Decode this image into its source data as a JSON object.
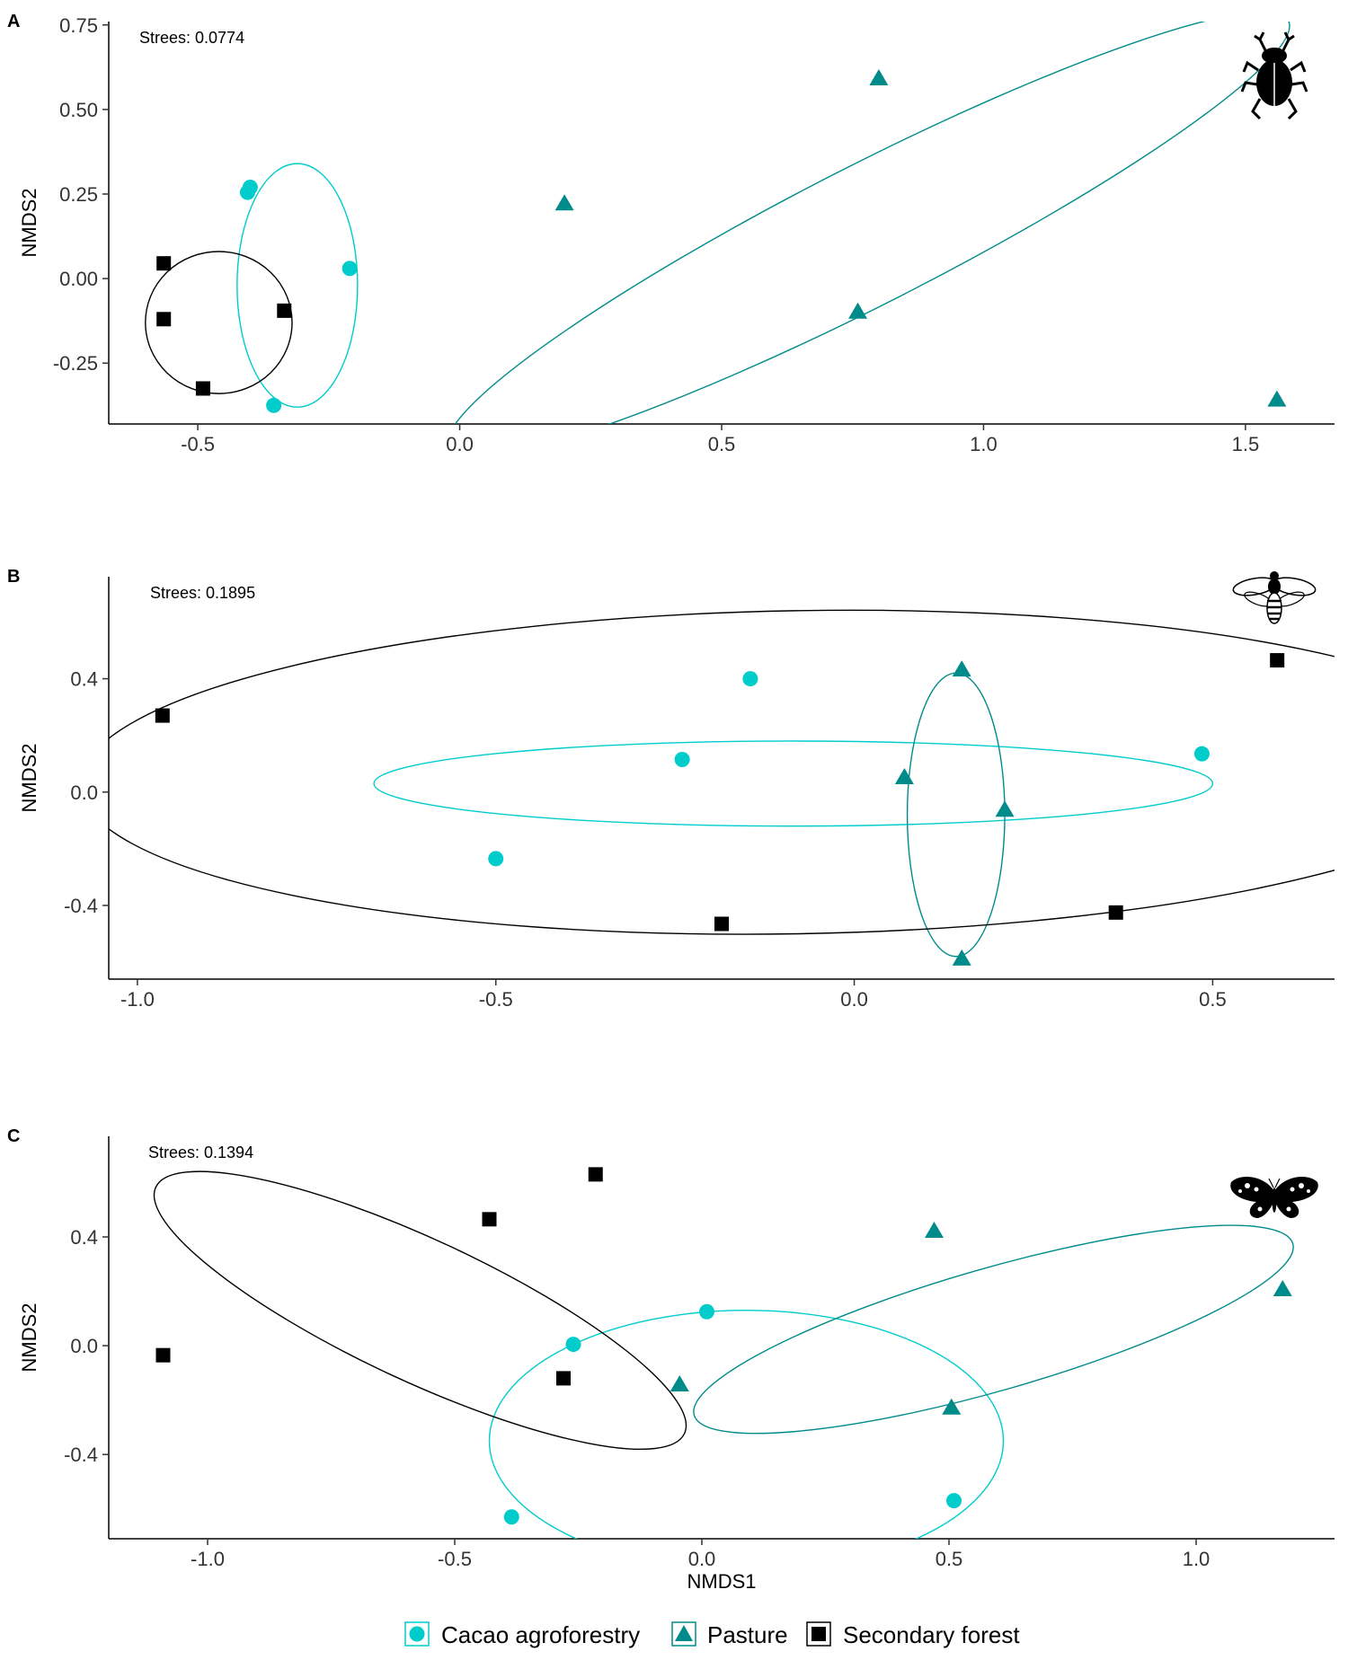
{
  "colors": {
    "cacao": "#00CCCC",
    "pasture": "#008B8B",
    "secondary": "#000000",
    "axis": "#000000"
  },
  "legend": {
    "placement": "bottom",
    "items": [
      {
        "label": "Cacao agroforestry",
        "shape": "circle",
        "color_key": "cacao"
      },
      {
        "label": "Pasture",
        "shape": "triangle",
        "color_key": "pasture"
      },
      {
        "label": "Secondary forest",
        "shape": "square",
        "color_key": "secondary"
      }
    ]
  },
  "chart_data": [
    {
      "panel": "A",
      "type": "scatter",
      "icon": "dung-beetle-icon",
      "stress_label": "Strees: 0.0774",
      "xlabel": "",
      "ylabel": "NMDS2",
      "xlim": [
        -0.67,
        1.67
      ],
      "ylim": [
        -0.43,
        0.76
      ],
      "xticks": [
        -0.5,
        0.0,
        0.5,
        1.0,
        1.5
      ],
      "xtick_labels": [
        "-0.5",
        "0.0",
        "0.5",
        "1.0",
        "1.5"
      ],
      "yticks": [
        -0.25,
        0.0,
        0.25,
        0.5,
        0.75
      ],
      "ytick_labels": [
        "-0.25",
        "0.00",
        "0.25",
        "0.50",
        "0.75"
      ],
      "series": [
        {
          "name": "Cacao agroforestry",
          "shape": "circle",
          "color_key": "cacao",
          "points": [
            [
              -0.4,
              0.27
            ],
            [
              -0.405,
              0.255
            ],
            [
              -0.21,
              0.03
            ],
            [
              -0.355,
              -0.375
            ]
          ],
          "ellipse": {
            "center": [
              -0.31,
              -0.02
            ],
            "rx": 0.115,
            "ry": 0.36,
            "rotation_deg": 0
          }
        },
        {
          "name": "Pasture",
          "shape": "triangle",
          "color_key": "pasture",
          "points": [
            [
              0.2,
              0.22
            ],
            [
              0.8,
              0.59
            ],
            [
              0.76,
              -0.1
            ],
            [
              1.56,
              -0.36
            ]
          ],
          "ellipse": {
            "center": [
              0.78,
              0.13
            ],
            "rx": 0.9,
            "ry": 0.205,
            "rotation_deg": -27
          }
        },
        {
          "name": "Secondary forest",
          "shape": "square",
          "color_key": "secondary",
          "points": [
            [
              -0.565,
              0.045
            ],
            [
              -0.565,
              -0.12
            ],
            [
              -0.335,
              -0.095
            ],
            [
              -0.49,
              -0.325
            ]
          ],
          "ellipse": {
            "center": [
              -0.46,
              -0.13
            ],
            "rx": 0.14,
            "ry": 0.21,
            "rotation_deg": 0
          }
        }
      ]
    },
    {
      "panel": "B",
      "type": "scatter",
      "icon": "bee-icon",
      "stress_label": "Strees: 0.1895",
      "xlabel": "",
      "ylabel": "NMDS2",
      "xlim": [
        -1.04,
        0.67
      ],
      "ylim": [
        -0.66,
        0.76
      ],
      "xticks": [
        -1.0,
        -0.5,
        0.0,
        0.5
      ],
      "xtick_labels": [
        "-1.0",
        "-0.5",
        "0.0",
        "0.5"
      ],
      "yticks": [
        -0.4,
        0.0,
        0.4
      ],
      "ytick_labels": [
        "-0.4",
        "0.0",
        "0.4"
      ],
      "series": [
        {
          "name": "Cacao agroforestry",
          "shape": "circle",
          "color_key": "cacao",
          "points": [
            [
              -0.145,
              0.4
            ],
            [
              -0.24,
              0.115
            ],
            [
              0.485,
              0.135
            ],
            [
              -0.5,
              -0.235
            ]
          ],
          "ellipse": {
            "center": [
              -0.085,
              0.03
            ],
            "rx": 0.585,
            "ry": 0.15,
            "rotation_deg": 0
          }
        },
        {
          "name": "Pasture",
          "shape": "triangle",
          "color_key": "pasture",
          "points": [
            [
              0.15,
              0.43
            ],
            [
              0.07,
              0.05
            ],
            [
              0.21,
              -0.065
            ],
            [
              0.15,
              -0.59
            ]
          ],
          "ellipse": {
            "center": [
              0.142,
              -0.08
            ],
            "rx": 0.068,
            "ry": 0.5,
            "rotation_deg": 0
          }
        },
        {
          "name": "Secondary forest",
          "shape": "square",
          "color_key": "secondary",
          "points": [
            [
              -0.965,
              0.27
            ],
            [
              -0.185,
              -0.465
            ],
            [
              0.59,
              0.465
            ],
            [
              0.365,
              -0.425
            ]
          ],
          "ellipse": {
            "center": [
              -0.08,
              0.07
            ],
            "rx": 1.0,
            "ry": 0.57,
            "rotation_deg": -1
          }
        }
      ]
    },
    {
      "panel": "C",
      "type": "scatter",
      "icon": "butterfly-icon",
      "stress_label": "Strees: 0.1394",
      "xlabel": "NMDS1",
      "ylabel": "NMDS2",
      "xlim": [
        -1.2,
        1.28
      ],
      "ylim": [
        -0.71,
        0.77
      ],
      "xticks": [
        -1.0,
        -0.5,
        0.0,
        0.5,
        1.0
      ],
      "xtick_labels": [
        "-1.0",
        "-0.5",
        "0.0",
        "0.5",
        "1.0"
      ],
      "yticks": [
        -0.4,
        0.0,
        0.4
      ],
      "ytick_labels": [
        "-0.4",
        "0.0",
        "0.4"
      ],
      "series": [
        {
          "name": "Cacao agroforestry",
          "shape": "circle",
          "color_key": "cacao",
          "points": [
            [
              0.01,
              0.125
            ],
            [
              -0.26,
              0.005
            ],
            [
              -0.385,
              -0.63
            ],
            [
              0.51,
              -0.57
            ]
          ],
          "ellipse": {
            "center": [
              0.09,
              -0.35
            ],
            "rx": 0.52,
            "ry": 0.48,
            "rotation_deg": 0
          }
        },
        {
          "name": "Pasture",
          "shape": "triangle",
          "color_key": "pasture",
          "points": [
            [
              0.47,
              0.42
            ],
            [
              1.175,
              0.205
            ],
            [
              -0.045,
              -0.145
            ],
            [
              0.505,
              -0.23
            ]
          ],
          "ellipse": {
            "center": [
              0.59,
              0.06
            ],
            "rx": 0.63,
            "ry": 0.225,
            "rotation_deg": -16
          }
        },
        {
          "name": "Secondary forest",
          "shape": "square",
          "color_key": "secondary",
          "points": [
            [
              -0.215,
              0.63
            ],
            [
              -0.43,
              0.465
            ],
            [
              -1.09,
              -0.035
            ],
            [
              -0.28,
              -0.12
            ]
          ],
          "ellipse": {
            "center": [
              -0.57,
              0.13
            ],
            "rx": 0.59,
            "ry": 0.26,
            "rotation_deg": 25
          }
        }
      ]
    }
  ]
}
